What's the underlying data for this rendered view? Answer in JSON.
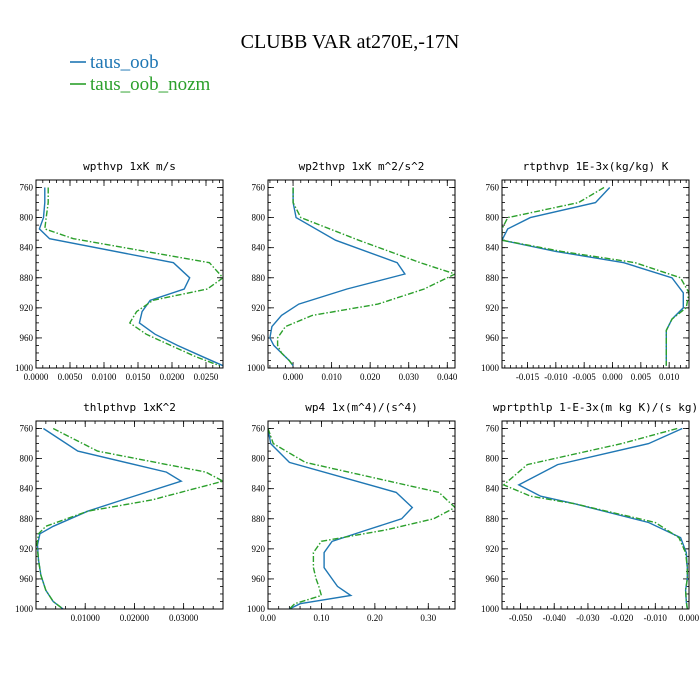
{
  "figure": {
    "title": "CLUBB VAR at270E,-17N",
    "legend": [
      {
        "name": "taus_oob",
        "color": "#1f77b4",
        "dash": "solid"
      },
      {
        "name": "taus_oob_nozm",
        "color": "#2ca02c",
        "dash": "dashdot"
      }
    ]
  },
  "chart_data": [
    {
      "type": "line",
      "title": "wpthvp  1xK m/s",
      "xlim": [
        0,
        0.0275
      ],
      "xticks": [
        0.0,
        0.005,
        0.01,
        0.015,
        0.02,
        0.025
      ],
      "xtick_labels": [
        "0.0000",
        "0.0050",
        "0.0100",
        "0.0150",
        "0.0200",
        "0.0250"
      ],
      "ylim": [
        1000,
        750
      ],
      "yticks": [
        760,
        800,
        840,
        880,
        920,
        960,
        1000
      ],
      "ytick_labels": [
        "760",
        "800",
        "840",
        "880",
        "920",
        "960",
        "1000"
      ],
      "series": [
        {
          "name": "taus_oob",
          "x": [
            0.0013,
            0.0013,
            0.0011,
            0.0005,
            0.002,
            0.0202,
            0.0226,
            0.0218,
            0.0168,
            0.0156,
            0.0152,
            0.0175,
            0.0208,
            0.0245,
            0.0275
          ],
          "y": [
            760,
            780,
            800,
            815,
            828,
            860,
            880,
            895,
            910,
            925,
            940,
            955,
            970,
            985,
            997
          ]
        },
        {
          "name": "taus_oob_nozm",
          "x": [
            0.0018,
            0.0018,
            0.0015,
            0.0013,
            0.0055,
            0.0255,
            0.0275,
            0.0252,
            0.0172,
            0.0148,
            0.0138,
            0.0162,
            0.0198,
            0.0235,
            0.027
          ],
          "y": [
            760,
            780,
            800,
            815,
            828,
            860,
            880,
            895,
            910,
            925,
            940,
            955,
            970,
            985,
            997
          ]
        }
      ]
    },
    {
      "type": "line",
      "title": "wp2thvp  1xK m^2/s^2",
      "xlim": [
        -0.0065,
        0.042
      ],
      "xticks": [
        0.0,
        0.01,
        0.02,
        0.03,
        0.04
      ],
      "xtick_labels": [
        "0.000",
        "0.010",
        "0.020",
        "0.030",
        "0.040"
      ],
      "ylim": [
        1000,
        750
      ],
      "yticks": [
        760,
        800,
        840,
        880,
        920,
        960,
        1000
      ],
      "ytick_labels": [
        "760",
        "800",
        "840",
        "880",
        "920",
        "960",
        "1000"
      ],
      "series": [
        {
          "name": "taus_oob",
          "x": [
            0.0,
            0.0,
            0.0008,
            0.011,
            0.027,
            0.029,
            0.014,
            0.0015,
            -0.003,
            -0.0055,
            -0.006,
            -0.005,
            -0.003,
            -0.001,
            0.0
          ],
          "y": [
            760,
            780,
            800,
            830,
            860,
            875,
            895,
            915,
            930,
            945,
            960,
            970,
            980,
            990,
            997
          ]
        },
        {
          "name": "taus_oob_nozm",
          "x": [
            0.0,
            0.0,
            0.002,
            0.017,
            0.033,
            0.042,
            0.034,
            0.022,
            0.005,
            -0.002,
            -0.004,
            -0.004,
            -0.003,
            -0.001,
            0.0
          ],
          "y": [
            760,
            780,
            800,
            830,
            860,
            875,
            895,
            915,
            930,
            945,
            960,
            970,
            980,
            990,
            997
          ]
        }
      ]
    },
    {
      "type": "line",
      "title": "rtpthvp  1E-3x(kg/kg) K",
      "xlim": [
        -0.0195,
        0.0135
      ],
      "xticks": [
        -0.015,
        -0.01,
        -0.005,
        0.0,
        0.005,
        0.01
      ],
      "xtick_labels": [
        "-0.015",
        "-0.010",
        "-0.005",
        "0.000",
        "0.005",
        "0.010"
      ],
      "ylim": [
        1000,
        750
      ],
      "yticks": [
        760,
        800,
        840,
        880,
        920,
        960,
        1000
      ],
      "ytick_labels": [
        "760",
        "800",
        "840",
        "880",
        "920",
        "960",
        "1000"
      ],
      "series": [
        {
          "name": "taus_oob",
          "x": [
            -0.0005,
            -0.003,
            -0.0145,
            -0.0185,
            -0.0195,
            -0.01,
            0.002,
            0.0105,
            0.0125,
            0.0125,
            0.0105,
            0.0095,
            0.0095,
            0.0095,
            0.0095
          ],
          "y": [
            760,
            780,
            800,
            815,
            830,
            845,
            860,
            880,
            900,
            920,
            935,
            950,
            965,
            980,
            997
          ]
        },
        {
          "name": "taus_oob_nozm",
          "x": [
            -0.0015,
            -0.006,
            -0.0185,
            -0.0195,
            -0.0195,
            -0.009,
            0.004,
            0.012,
            0.0135,
            0.013,
            0.0105,
            0.0095,
            0.0095,
            0.0095,
            0.0095
          ],
          "y": [
            760,
            780,
            800,
            815,
            830,
            845,
            860,
            880,
            900,
            920,
            935,
            950,
            965,
            980,
            997
          ]
        }
      ]
    },
    {
      "type": "line",
      "title": "thlpthvp  1xK^2",
      "xlim": [
        0.0,
        0.038
      ],
      "xticks": [
        0.01,
        0.02,
        0.03
      ],
      "xtick_labels": [
        "0.01000",
        "0.02000",
        "0.03000"
      ],
      "ylim": [
        1000,
        750
      ],
      "yticks": [
        760,
        800,
        840,
        880,
        920,
        960,
        1000
      ],
      "ytick_labels": [
        "760",
        "800",
        "840",
        "880",
        "920",
        "960",
        "1000"
      ],
      "series": [
        {
          "name": "taus_oob",
          "x": [
            0.0015,
            0.0085,
            0.0265,
            0.0295,
            0.0175,
            0.0105,
            0.0035,
            0.0008,
            0.0003,
            0.0005,
            0.001,
            0.002,
            0.0035,
            0.0055
          ],
          "y": [
            760,
            790,
            818,
            830,
            855,
            870,
            890,
            900,
            915,
            935,
            955,
            975,
            990,
            1000
          ]
        },
        {
          "name": "taus_oob_nozm",
          "x": [
            0.0035,
            0.0125,
            0.0345,
            0.038,
            0.0235,
            0.0105,
            0.002,
            0.0005,
            0.0002,
            0.0005,
            0.001,
            0.002,
            0.0035,
            0.0055
          ],
          "y": [
            760,
            790,
            818,
            830,
            855,
            870,
            890,
            900,
            915,
            935,
            955,
            975,
            990,
            1000
          ]
        }
      ]
    },
    {
      "type": "line",
      "title": "wp4  1x(m^4)/(s^4)",
      "xlim": [
        0.0,
        0.35
      ],
      "xticks": [
        0.0,
        0.1,
        0.2,
        0.3
      ],
      "xtick_labels": [
        "0.00",
        "0.10",
        "0.20",
        "0.30"
      ],
      "ylim": [
        1000,
        750
      ],
      "yticks": [
        760,
        800,
        840,
        880,
        920,
        960,
        1000
      ],
      "ytick_labels": [
        "760",
        "800",
        "840",
        "880",
        "920",
        "960",
        "1000"
      ],
      "series": [
        {
          "name": "taus_oob",
          "x": [
            0.0,
            0.005,
            0.04,
            0.24,
            0.27,
            0.25,
            0.185,
            0.12,
            0.105,
            0.105,
            0.12,
            0.13,
            0.155,
            0.06,
            0.04
          ],
          "y": [
            760,
            780,
            805,
            845,
            865,
            880,
            895,
            910,
            925,
            945,
            960,
            970,
            982,
            993,
            1000
          ]
        },
        {
          "name": "taus_oob_nozm",
          "x": [
            0.0,
            0.01,
            0.07,
            0.32,
            0.35,
            0.31,
            0.22,
            0.1,
            0.085,
            0.085,
            0.09,
            0.095,
            0.1,
            0.05,
            0.04
          ],
          "y": [
            760,
            780,
            805,
            845,
            865,
            880,
            895,
            910,
            925,
            945,
            960,
            970,
            982,
            993,
            1000
          ]
        }
      ]
    },
    {
      "type": "line",
      "title": "wprtpthlp  1-E-3x(m kg K)/(s kg)",
      "xlim": [
        -0.0555,
        0.0
      ],
      "xticks": [
        -0.05,
        -0.04,
        -0.03,
        -0.02,
        -0.01,
        0.0
      ],
      "xtick_labels": [
        "-0.050",
        "-0.040",
        "-0.030",
        "-0.020",
        "-0.010",
        "0.000"
      ],
      "ylim": [
        1000,
        750
      ],
      "yticks": [
        760,
        800,
        840,
        880,
        920,
        960,
        1000
      ],
      "ytick_labels": [
        "760",
        "800",
        "840",
        "880",
        "920",
        "960",
        "1000"
      ],
      "series": [
        {
          "name": "taus_oob",
          "x": [
            -0.002,
            -0.012,
            -0.039,
            -0.0505,
            -0.044,
            -0.034,
            -0.012,
            -0.0025,
            -0.0008,
            -0.0005,
            -0.0005,
            -0.001,
            -0.0008,
            -0.0005
          ],
          "y": [
            760,
            780,
            808,
            835,
            850,
            860,
            885,
            905,
            925,
            945,
            960,
            975,
            990,
            1000
          ]
        },
        {
          "name": "taus_oob_nozm",
          "x": [
            -0.0035,
            -0.02,
            -0.048,
            -0.055,
            -0.047,
            -0.034,
            -0.01,
            -0.003,
            -0.001,
            -0.0005,
            -0.0005,
            -0.001,
            -0.0008,
            -0.0005
          ],
          "y": [
            760,
            780,
            808,
            835,
            850,
            860,
            885,
            905,
            925,
            945,
            960,
            975,
            990,
            1000
          ]
        }
      ]
    }
  ]
}
